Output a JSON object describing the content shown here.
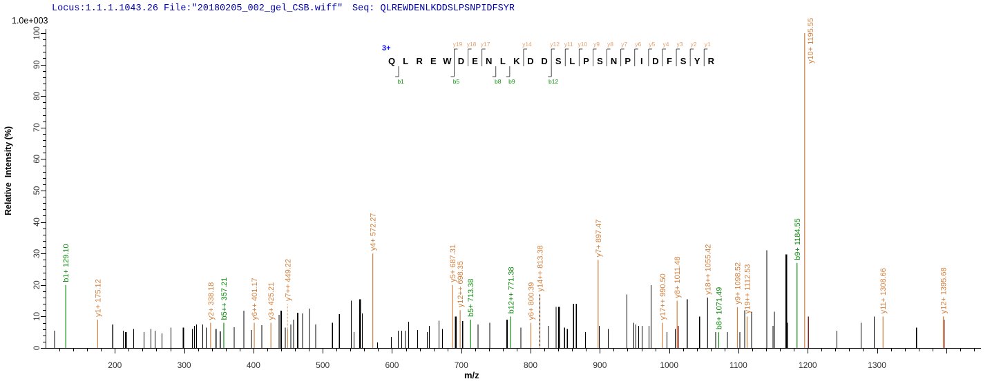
{
  "header": {
    "locus_file": "Locus:1.1.1.1043.26 File:\"20180205_002_gel_CSB.wiff\"",
    "seq_label": "Seq: QLREWDENLKDDSLPSNPIDFSYR"
  },
  "colors": {
    "y_ion": "#d2803e",
    "y_ion_light": "#e5a06c",
    "b_ion": "#0e8c0e",
    "noise": "#000000",
    "isotope_dark": "#8b1e1e",
    "header_text": "#0000a8",
    "charge_blue": "#0000ff",
    "axis": "#000000",
    "tick_label": "#333333",
    "bracket": "#333333"
  },
  "chart_data": {
    "type": "bar",
    "subtype": "ms2-peptide-fragmentation-stick-spectrum",
    "xlabel": "m/z",
    "ylabel": "Relative  Intensity (%)",
    "intensity_scale": "1.0e+003",
    "xlim": [
      100,
      1450
    ],
    "ylim": [
      0,
      100
    ],
    "x_major_step": 100,
    "x_minor_step": 20,
    "y_major_step": 10,
    "y_minor_step": 2,
    "x_tick_labels": [
      200,
      300,
      400,
      500,
      600,
      700,
      800,
      900,
      1000,
      1100,
      1200,
      1300
    ],
    "y_tick_labels": [
      0,
      10,
      20,
      30,
      40,
      50,
      60,
      70,
      80,
      90,
      100
    ],
    "grid": false,
    "precursor_charge": "3+",
    "peptide": {
      "sequence": "QLREWDENLKDDSLPSNPIDFSYR",
      "y_ion_marks": [
        {
          "pos": 5,
          "label": "y19"
        },
        {
          "pos": 6,
          "label": "y18"
        },
        {
          "pos": 7,
          "label": "y17"
        },
        {
          "pos": 10,
          "label": "y14"
        },
        {
          "pos": 12,
          "label": "y12"
        },
        {
          "pos": 13,
          "label": "y11"
        },
        {
          "pos": 14,
          "label": "y10"
        },
        {
          "pos": 15,
          "label": "y9"
        },
        {
          "pos": 16,
          "label": "y8"
        },
        {
          "pos": 17,
          "label": "y7"
        },
        {
          "pos": 18,
          "label": "y6"
        },
        {
          "pos": 19,
          "label": "y5"
        },
        {
          "pos": 20,
          "label": "y4"
        },
        {
          "pos": 21,
          "label": "y3"
        },
        {
          "pos": 22,
          "label": "y2"
        },
        {
          "pos": 23,
          "label": "y1"
        }
      ],
      "b_ion_marks": [
        {
          "pos": 1,
          "label": "b1"
        },
        {
          "pos": 5,
          "label": "b5"
        },
        {
          "pos": 8,
          "label": "b8"
        },
        {
          "pos": 9,
          "label": "b9"
        },
        {
          "pos": 12,
          "label": "b12"
        }
      ]
    },
    "annotated_peaks": [
      {
        "label": "b1+ 129.10",
        "ion": "b1+",
        "mz": 129.1,
        "intensity_pct": 20,
        "series": "b"
      },
      {
        "label": "y1+ 175.12",
        "ion": "y1+",
        "mz": 175.12,
        "intensity_pct": 9,
        "series": "y"
      },
      {
        "label": "y2+ 338.18",
        "ion": "y2+",
        "mz": 338.18,
        "intensity_pct": 8,
        "series": "y"
      },
      {
        "label": "b5++ 357.21",
        "ion": "b5++",
        "mz": 357.21,
        "intensity_pct": 8,
        "series": "b"
      },
      {
        "label": "y6++ 401.17",
        "ion": "y6++",
        "mz": 401.17,
        "intensity_pct": 8,
        "series": "y"
      },
      {
        "label": "y3+ 425.21",
        "ion": "y3+",
        "mz": 425.21,
        "intensity_pct": 8,
        "series": "y"
      },
      {
        "label": "y7++ 449.22",
        "ion": "y7++",
        "mz": 449.22,
        "intensity_pct": 6,
        "series": "y",
        "label_pct": 14
      },
      {
        "label": "y4+ 572.27",
        "ion": "y4+",
        "mz": 572.27,
        "intensity_pct": 30,
        "series": "y"
      },
      {
        "label": "y5+ 687.31",
        "ion": "y5+",
        "mz": 687.31,
        "intensity_pct": 20,
        "series": "y"
      },
      {
        "label": "y12++ 698.35",
        "ion": "y12++",
        "mz": 698.35,
        "intensity_pct": 12,
        "series": "y"
      },
      {
        "label": "b5+ 713.38",
        "ion": "b5+",
        "mz": 713.38,
        "intensity_pct": 9,
        "series": "b"
      },
      {
        "label": "b12++ 771.38",
        "ion": "b12++",
        "mz": 771.38,
        "intensity_pct": 10,
        "series": "b"
      },
      {
        "label": "y6+ 800.39",
        "ion": "y6+",
        "mz": 800.39,
        "intensity_pct": 8,
        "series": "y"
      },
      {
        "label": "y14++ 813.38",
        "ion": "y14++",
        "mz": 813.38,
        "intensity_pct": 17,
        "series": "y",
        "peak_color": "black",
        "dashed_overlay": true
      },
      {
        "label": "y7+ 897.47",
        "ion": "y7+",
        "mz": 897.47,
        "intensity_pct": 28,
        "series": "y"
      },
      {
        "label": "y17++ 990.50",
        "ion": "y17++",
        "mz": 990.5,
        "intensity_pct": 8,
        "series": "y"
      },
      {
        "label": "y8+ 1011.48",
        "ion": "y8+",
        "mz": 1011.48,
        "intensity_pct": 15,
        "series": "y"
      },
      {
        "label": "y18++ 1055.42",
        "ion": "y18++",
        "mz": 1055.42,
        "intensity_pct": 16,
        "series": "y",
        "peak_color": "black"
      },
      {
        "label": "b8+ 1071.49",
        "ion": "b8+",
        "mz": 1071.49,
        "intensity_pct": 5,
        "series": "b"
      },
      {
        "label": "y9+ 1098.52",
        "ion": "y9+",
        "mz": 1098.52,
        "intensity_pct": 13,
        "series": "y"
      },
      {
        "label": "y19++ 1112.53",
        "ion": "y19++",
        "mz": 1112.53,
        "intensity_pct": 10,
        "series": "y"
      },
      {
        "label": "b9+ 1184.55",
        "ion": "b9+",
        "mz": 1184.55,
        "intensity_pct": 27,
        "series": "b"
      },
      {
        "label": "y10+ 1195.55",
        "ion": "y10+",
        "mz": 1195.55,
        "intensity_pct": 100,
        "series": "y"
      },
      {
        "label": "y11+ 1308.66",
        "ion": "y11+",
        "mz": 1308.66,
        "intensity_pct": 10,
        "series": "y"
      },
      {
        "label": "y12+ 1395.68",
        "ion": "y12+",
        "mz": 1395.68,
        "intensity_pct": 10,
        "series": "y"
      }
    ],
    "unannotated_peaks": [
      [
        113,
        5.5
      ],
      [
        197,
        7.5
      ],
      [
        212,
        5.5
      ],
      [
        216,
        5,
        "w"
      ],
      [
        227,
        6
      ],
      [
        242,
        5
      ],
      [
        252,
        6
      ],
      [
        258,
        5.5
      ],
      [
        268,
        4.6
      ],
      [
        281,
        6.5
      ],
      [
        299,
        6.5,
        "w"
      ],
      [
        312,
        6
      ],
      [
        315,
        7
      ],
      [
        318,
        7.5
      ],
      [
        327,
        7.5
      ],
      [
        332,
        6.5
      ],
      [
        346,
        6
      ],
      [
        352,
        5.3
      ],
      [
        372,
        6.6
      ],
      [
        386,
        11.8
      ],
      [
        397,
        5.7
      ],
      [
        412,
        7.2
      ],
      [
        437,
        10.5
      ],
      [
        440,
        11.8,
        "w"
      ],
      [
        446,
        6.5
      ],
      [
        454,
        7.5
      ],
      [
        458,
        9
      ],
      [
        464,
        11.2,
        "w"
      ],
      [
        471,
        11
      ],
      [
        481,
        12.5
      ],
      [
        490,
        7.5
      ],
      [
        514,
        8
      ],
      [
        524,
        10.7
      ],
      [
        541,
        15
      ],
      [
        545,
        5
      ],
      [
        554,
        15.5,
        "w"
      ],
      [
        557,
        11
      ],
      [
        579,
        1.8
      ],
      [
        599,
        3.5
      ],
      [
        609,
        5.5
      ],
      [
        614,
        5.5
      ],
      [
        619,
        5.5
      ],
      [
        624,
        8.3
      ],
      [
        637,
        5.7
      ],
      [
        651,
        5
      ],
      [
        654,
        7
      ],
      [
        668,
        8.7
      ],
      [
        673,
        6
      ],
      [
        692,
        10,
        "w"
      ],
      [
        702,
        8.5
      ],
      [
        724,
        7.5
      ],
      [
        741,
        8
      ],
      [
        766,
        9,
        "w"
      ],
      [
        786,
        6.5
      ],
      [
        826,
        7
      ],
      [
        837,
        13
      ],
      [
        841,
        13,
        "w"
      ],
      [
        849,
        6.5
      ],
      [
        853,
        6
      ],
      [
        862,
        14
      ],
      [
        866,
        14
      ],
      [
        879,
        5
      ],
      [
        899,
        7
      ],
      [
        912,
        6
      ],
      [
        939,
        17
      ],
      [
        949,
        8
      ],
      [
        952,
        7.5
      ],
      [
        956,
        7
      ],
      [
        961,
        7
      ],
      [
        971,
        7
      ],
      [
        974,
        20
      ],
      [
        997,
        5
      ],
      [
        1009,
        6
      ],
      [
        1013,
        7,
        "d"
      ],
      [
        1026,
        15.5
      ],
      [
        1044,
        10
      ],
      [
        1067,
        5
      ],
      [
        1084,
        5
      ],
      [
        1102,
        5
      ],
      [
        1109,
        12
      ],
      [
        1119,
        11.5
      ],
      [
        1141,
        31
      ],
      [
        1150,
        7
      ],
      [
        1152,
        11.5
      ],
      [
        1169,
        29.7,
        "w"
      ],
      [
        1171,
        8
      ],
      [
        1201,
        10,
        "d"
      ],
      [
        1242,
        5.5
      ],
      [
        1277,
        8
      ],
      [
        1296,
        10
      ],
      [
        1357,
        6.5
      ],
      [
        1397,
        9,
        "d"
      ]
    ]
  }
}
